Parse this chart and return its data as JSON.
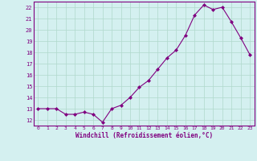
{
  "x": [
    0,
    1,
    2,
    3,
    4,
    5,
    6,
    7,
    8,
    9,
    10,
    11,
    12,
    13,
    14,
    15,
    16,
    17,
    18,
    19,
    20,
    21,
    22,
    23
  ],
  "y": [
    13,
    13,
    13,
    12.5,
    12.5,
    12.7,
    12.5,
    11.8,
    13,
    13.3,
    14,
    14.9,
    15.5,
    16.5,
    17.5,
    18.2,
    19.5,
    21.3,
    22.2,
    21.8,
    22.0,
    20.7,
    19.3,
    17.8
  ],
  "line_color": "#800080",
  "marker": "D",
  "marker_size": 2.0,
  "bg_color": "#d4f0f0",
  "grid_color": "#b0d8cc",
  "xlabel": "Windchill (Refroidissement éolien,°C)",
  "xlabel_color": "#800080",
  "tick_color": "#800080",
  "yticks": [
    12,
    13,
    14,
    15,
    16,
    17,
    18,
    19,
    20,
    21,
    22
  ],
  "ylim": [
    11.5,
    22.5
  ],
  "xlim": [
    -0.5,
    23.5
  ]
}
